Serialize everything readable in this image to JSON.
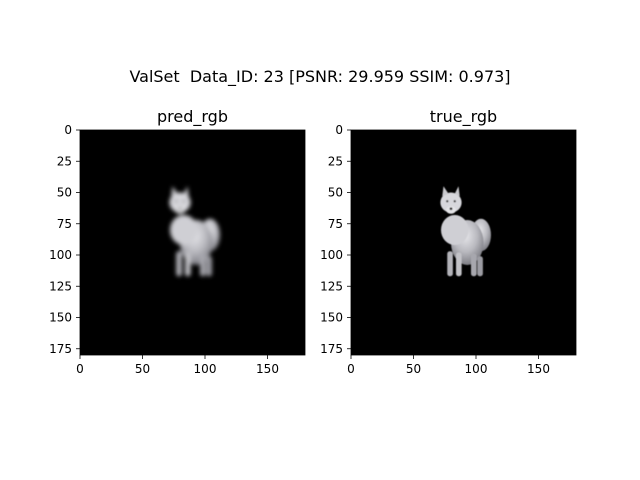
{
  "figure": {
    "suptitle": "ValSet  Data_ID: 23 [PSNR: 29.959 SSIM: 0.973]"
  },
  "chart_data": [
    {
      "type": "image",
      "title": "pred_rgb",
      "xlim": [
        0,
        180
      ],
      "ylim": [
        180,
        0
      ],
      "xticks": [
        0,
        50,
        100,
        150
      ],
      "yticks": [
        0,
        25,
        50,
        75,
        100,
        125,
        150,
        175
      ],
      "xtick_labels": [
        "0",
        "50",
        "100",
        "150"
      ],
      "ytick_labels": [
        "0",
        "25",
        "50",
        "75",
        "100",
        "125",
        "150",
        "175"
      ],
      "background_color": "#000000",
      "subject": "white fluffy dog (slightly blurred prediction)"
    },
    {
      "type": "image",
      "title": "true_rgb",
      "xlim": [
        0,
        180
      ],
      "ylim": [
        180,
        0
      ],
      "xticks": [
        0,
        50,
        100,
        150
      ],
      "yticks": [
        0,
        25,
        50,
        75,
        100,
        125,
        150,
        175
      ],
      "xtick_labels": [
        "0",
        "50",
        "100",
        "150"
      ],
      "ytick_labels": [
        "0",
        "25",
        "50",
        "75",
        "100",
        "125",
        "150",
        "175"
      ],
      "background_color": "#000000",
      "subject": "white fluffy dog (ground truth)"
    }
  ]
}
